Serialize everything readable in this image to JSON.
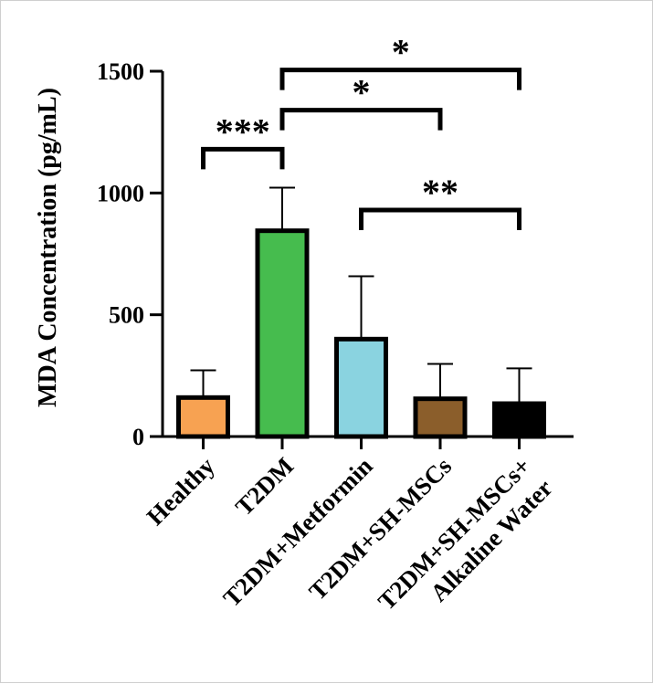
{
  "chart_data": {
    "type": "bar",
    "title": "",
    "xlabel": "",
    "ylabel": "MDA Concentration (pg/mL)",
    "ylim": [
      0,
      1500
    ],
    "yticks": [
      0,
      500,
      1000,
      1500
    ],
    "grid": false,
    "categories": [
      {
        "lines": [
          "Healthy"
        ]
      },
      {
        "lines": [
          "T2DM"
        ]
      },
      {
        "lines": [
          "T2DM+Metformin"
        ]
      },
      {
        "lines": [
          "T2DM+SH-MSCs"
        ]
      },
      {
        "lines": [
          "T2DM+SH-MSCs+",
          "Alkaline Water"
        ]
      }
    ],
    "values": [
      160,
      845,
      400,
      155,
      135
    ],
    "error_upper": [
      272,
      1022,
      658,
      298,
      280
    ],
    "colors": [
      "#F7A252",
      "#46BC4E",
      "#8AD3E0",
      "#8B5E2B",
      "#000000"
    ],
    "significance": [
      {
        "from": 0,
        "to": 1,
        "label": "***",
        "y": 1180
      },
      {
        "from": 1,
        "to": 3,
        "label": "*",
        "y": 1340
      },
      {
        "from": 1,
        "to": 4,
        "label": "*",
        "y": 1505
      },
      {
        "from": 2,
        "to": 4,
        "label": "**",
        "y": 930
      }
    ]
  }
}
